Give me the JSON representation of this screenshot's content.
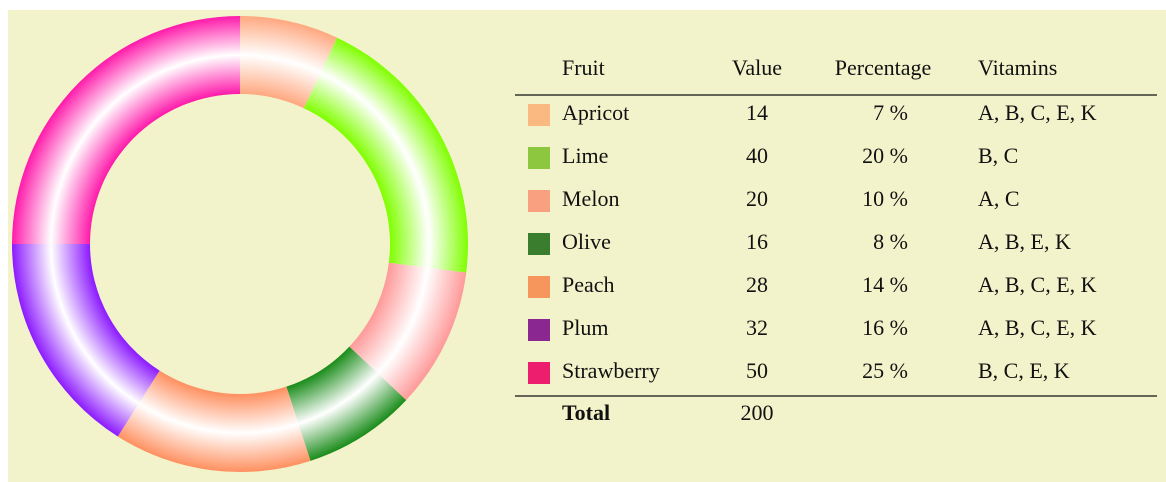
{
  "chart_data": {
    "type": "donut",
    "categories": [
      "Apricot",
      "Lime",
      "Melon",
      "Olive",
      "Peach",
      "Plum",
      "Strawberry"
    ],
    "values": [
      14,
      40,
      20,
      16,
      28,
      32,
      50
    ],
    "colors": [
      "#fbb982",
      "#8dc63f",
      "#f9a080",
      "#3a7d2f",
      "#f7965c",
      "#8a2791",
      "#ee1e6e"
    ],
    "ring_colors": [
      "#ffa880",
      "#80ff00",
      "#ff9999",
      "#1a8c1a",
      "#ff9060",
      "#8c1aff",
      "#ff1aaa"
    ]
  },
  "table": {
    "headers": [
      "Fruit",
      "Value",
      "Percentage",
      "Vitamins"
    ],
    "percentages": [
      "7 %",
      "20 %",
      "10 %",
      "8 %",
      "14 %",
      "16 %",
      "25 %"
    ],
    "vitamins": [
      "A, B, C, E, K",
      "B, C",
      "A, C",
      "A, B, E, K",
      "A, B, C, E, K",
      "A, B, C, E, K",
      "B, C, E, K"
    ],
    "total_label": "Total",
    "total": 200
  }
}
